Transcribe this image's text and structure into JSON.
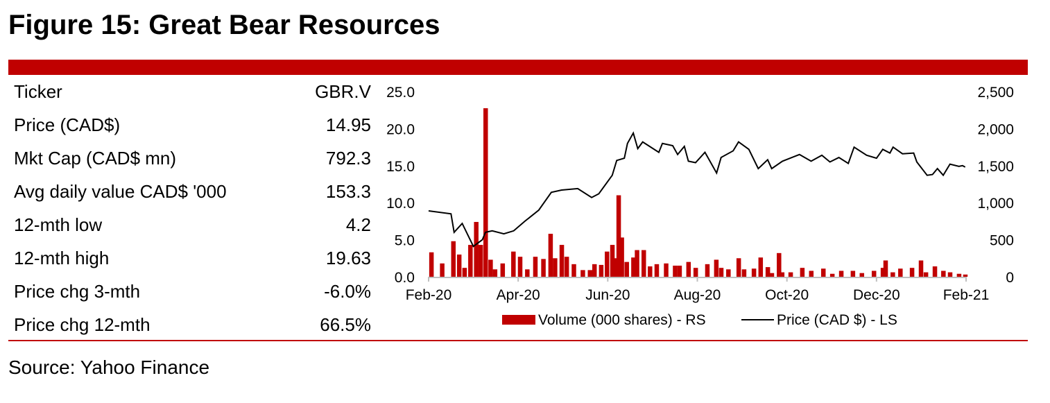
{
  "title": "Figure 15: Great Bear Resources",
  "source": "Source: Yahoo Finance",
  "table": [
    {
      "label": "Ticker",
      "value": "GBR.V"
    },
    {
      "label": "Price (CAD$)",
      "value": "14.95"
    },
    {
      "label": "Mkt Cap (CAD$ mn)",
      "value": "792.3"
    },
    {
      "label": "Avg daily value CAD$ '000",
      "value": "153.3"
    },
    {
      "label": "12-mth low",
      "value": "4.2"
    },
    {
      "label": "12-mth high",
      "value": "19.63"
    },
    {
      "label": "Price chg 3-mth",
      "value": "-6.0%"
    },
    {
      "label": "Price chg 12-mth",
      "value": "66.5%"
    }
  ],
  "colors": {
    "accent": "#c00000",
    "price": "#000000",
    "volume": "#c00000"
  },
  "chart_data": {
    "type": "bar+line",
    "x_unit": "months since Feb-20",
    "x_ticks": [
      "Feb-20",
      "Apr-20",
      "Jun-20",
      "Aug-20",
      "Oct-20",
      "Dec-20",
      "Feb-21"
    ],
    "y_left": {
      "label": "Price (CAD $)",
      "range": [
        0,
        25
      ],
      "ticks": [
        "0.0",
        "5.0",
        "10.0",
        "15.0",
        "20.0",
        "25.0"
      ]
    },
    "y_right": {
      "label": "Volume (000 shares)",
      "range": [
        0,
        2500
      ],
      "ticks": [
        "0",
        "500",
        "1,000",
        "1,500",
        "2,000",
        "2,500"
      ]
    },
    "legend": [
      "Volume (000 shares) - RS",
      "Price (CAD $) - LS"
    ],
    "legend_position": "bottom",
    "price": {
      "x": [
        0,
        0.5,
        0.57,
        0.75,
        1.0,
        1.2,
        1.27,
        1.42,
        1.68,
        1.9,
        2.15,
        2.46,
        2.74,
        2.97,
        3.33,
        3.64,
        3.8,
        4.1,
        4.2,
        4.37,
        4.44,
        4.57,
        4.67,
        4.78,
        5.14,
        5.22,
        5.45,
        5.56,
        5.71,
        5.8,
        5.96,
        6.17,
        6.43,
        6.53,
        6.8,
        6.92,
        7.15,
        7.36,
        7.57,
        7.66,
        7.9,
        8.28,
        8.54,
        8.78,
        8.96,
        9.16,
        9.37,
        9.5,
        9.78,
        10.0,
        10.14,
        10.3,
        10.37,
        10.58,
        10.83,
        10.9,
        11.13,
        11.25,
        11.36,
        11.49,
        11.64,
        11.84,
        11.92,
        11.98
      ],
      "y": [
        8.9,
        8.5,
        6.0,
        7.2,
        4.1,
        5.0,
        6.0,
        6.2,
        5.8,
        6.2,
        7.5,
        9.0,
        11.4,
        11.7,
        11.9,
        10.7,
        11.2,
        13.7,
        15.7,
        16.0,
        18.0,
        19.4,
        17.3,
        18.2,
        16.8,
        18.0,
        17.7,
        16.5,
        17.6,
        15.6,
        15.4,
        16.8,
        14.0,
        16.1,
        17.0,
        18.2,
        17.2,
        14.6,
        15.8,
        14.6,
        15.6,
        16.5,
        15.6,
        16.4,
        15.5,
        16.1,
        15.3,
        17.5,
        16.4,
        16.0,
        17.2,
        16.7,
        17.5,
        16.6,
        16.7,
        15.5,
        13.7,
        13.8,
        14.6,
        13.7,
        15.2,
        14.9,
        15.0,
        14.8
      ]
    },
    "volume": {
      "x": [
        0.06,
        0.3,
        0.55,
        0.68,
        0.8,
        0.93,
        1.06,
        1.16,
        1.27,
        1.38,
        1.48,
        1.65,
        1.89,
        2.04,
        2.2,
        2.38,
        2.56,
        2.72,
        2.82,
        2.97,
        3.08,
        3.24,
        3.44,
        3.6,
        3.7,
        3.85,
        3.98,
        4.1,
        4.18,
        4.24,
        4.31,
        4.42,
        4.57,
        4.65,
        4.8,
        4.94,
        5.09,
        5.3,
        5.5,
        5.6,
        5.8,
        5.96,
        6.22,
        6.42,
        6.53,
        6.69,
        6.92,
        7.04,
        7.26,
        7.41,
        7.57,
        7.66,
        7.82,
        7.89,
        8.08,
        8.34,
        8.54,
        8.81,
        9.01,
        9.21,
        9.47,
        9.67,
        9.94,
        10.14,
        10.2,
        10.36,
        10.53,
        10.79,
        10.99,
        11.1,
        11.3,
        11.49,
        11.64,
        11.84,
        11.98
      ],
      "y": [
        330,
        180,
        480,
        300,
        120,
        430,
        740,
        430,
        2275,
        230,
        100,
        180,
        340,
        270,
        100,
        270,
        240,
        580,
        250,
        430,
        270,
        170,
        90,
        90,
        170,
        160,
        340,
        430,
        250,
        1100,
        530,
        200,
        260,
        360,
        360,
        140,
        170,
        180,
        150,
        150,
        200,
        120,
        170,
        230,
        120,
        100,
        250,
        100,
        110,
        260,
        130,
        50,
        320,
        60,
        60,
        120,
        80,
        110,
        40,
        80,
        80,
        50,
        80,
        120,
        220,
        60,
        110,
        120,
        220,
        60,
        140,
        80,
        60,
        40,
        30
      ]
    }
  }
}
